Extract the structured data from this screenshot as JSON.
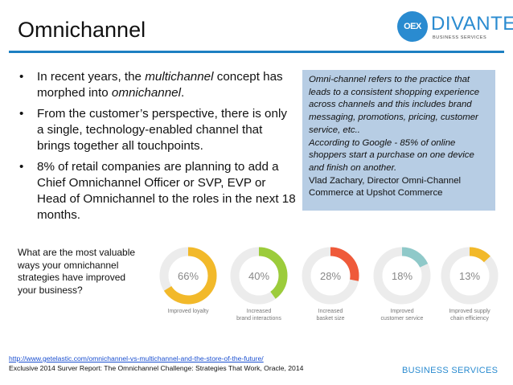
{
  "header": {
    "title": "Omnichannel",
    "logo_mark": "OEX",
    "logo_name": "DIVANTE",
    "logo_tagline": "BUSINESS SERVICES"
  },
  "bullets": [
    {
      "marker": "•",
      "pre": "In recent years, the ",
      "em1": "multichannel",
      "mid": " concept has morphed into ",
      "em2": "omnichannel",
      "post": "."
    },
    {
      "marker": "•",
      "text": "From the customer’s perspective, there is only a single, technology-enabled channel that brings together all touchpoints."
    },
    {
      "marker": "•",
      "text": "8% of retail companies are planning to add a Chief Omnichannel Officer or SVP, EVP or Head of Omnichannel to the roles in the next 18 months."
    }
  ],
  "note": {
    "definition": "Omni-channel refers to the practice that leads to a consistent shopping experience across channels and this includes brand messaging, promotions, pricing, customer service, etc..",
    "google": "According to Google - 85% of online shoppers start a purchase on one device and finish on another.",
    "attribution": "Vlad Zachary, Director Omni-Channel Commerce at Upshot Commerce"
  },
  "question": "What are the most valuable ways your omnichannel strategies have improved your business?",
  "donuts": [
    {
      "percent": 66,
      "label_text": "66%",
      "caption_line1": "Improved loyalty",
      "caption_line2": "",
      "color": "#f2b92a"
    },
    {
      "percent": 40,
      "label_text": "40%",
      "caption_line1": "Increased",
      "caption_line2": "brand interactions",
      "color": "#9ccc3b"
    },
    {
      "percent": 28,
      "label_text": "28%",
      "caption_line1": "Increased",
      "caption_line2": "basket size",
      "color": "#ef5a3a"
    },
    {
      "percent": 18,
      "label_text": "18%",
      "caption_line1": "Improved",
      "caption_line2": "customer service",
      "color": "#8fc9c9"
    },
    {
      "percent": 13,
      "label_text": "13%",
      "caption_line1": "Improved supply",
      "caption_line2": "chain efficiency",
      "color": "#f2b92a"
    }
  ],
  "footer": {
    "link": "http://www.getelastic.com/omnichannel-vs-multichannel-and-the-store-of-the-future/",
    "source": "Exclusive 2014 Surver Report: The Omnichannel Challenge: Strategies That Work, Oracle, 2014",
    "brand": "BUSINESS SERVICES"
  },
  "colors": {
    "accent": "#1d7fc2",
    "note_bg": "#b7cde4",
    "track": "#ececec"
  }
}
